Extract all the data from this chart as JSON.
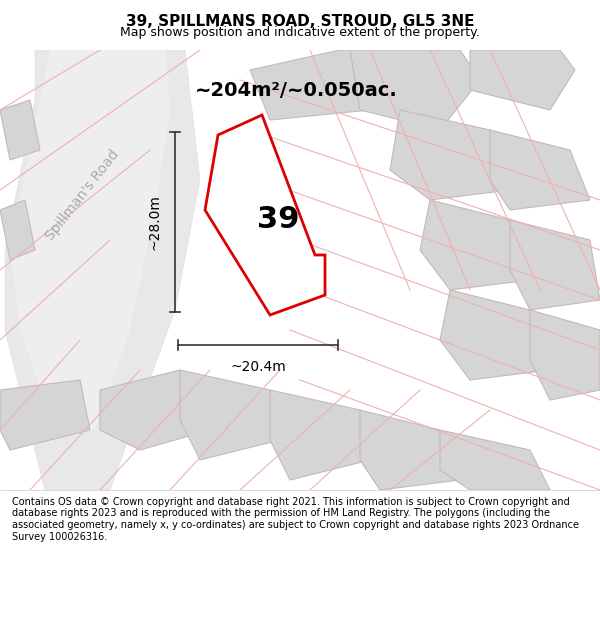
{
  "title": "39, SPILLMANS ROAD, STROUD, GL5 3NE",
  "subtitle": "Map shows position and indicative extent of the property.",
  "area_label": "~204m²/~0.050ac.",
  "plot_number": "39",
  "dim_width": "~20.4m",
  "dim_height": "~28.0m",
  "road_label": "Spillman's Road",
  "footer": "Contains OS data © Crown copyright and database right 2021. This information is subject to Crown copyright and database rights 2023 and is reproduced with the permission of HM Land Registry. The polygons (including the associated geometry, namely x, y co-ordinates) are subject to Crown copyright and database rights 2023 Ordnance Survey 100026316.",
  "bg_color": "#f5f0f0",
  "map_bg": "#f8f4f4",
  "plot_fill": "#ffffff",
  "plot_edge": "#dd0000",
  "building_fill": "#d5d5d5",
  "road_color": "#e8e8e8",
  "light_line_color": "#f0b0b0",
  "footer_bg": "#ffffff",
  "header_bg": "#ffffff"
}
